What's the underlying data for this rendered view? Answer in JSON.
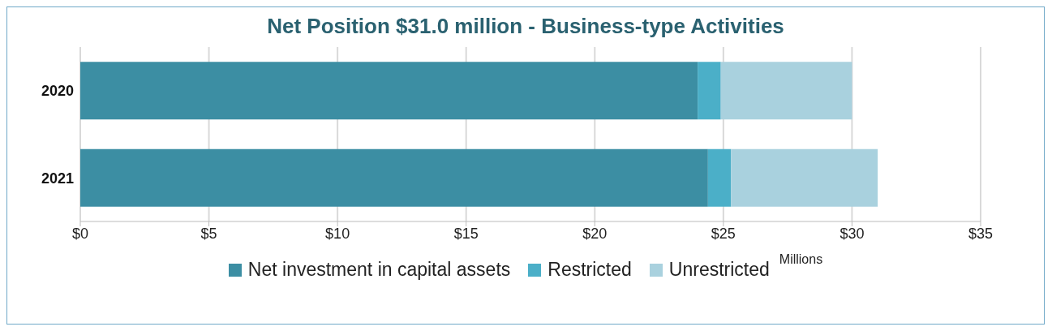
{
  "chart_data": {
    "type": "bar",
    "orientation": "horizontal",
    "stacked": true,
    "title": "Net Position $31.0 million - Business-type Activities",
    "xlabel": "Millions",
    "categories": [
      "2020",
      "2021"
    ],
    "series": [
      {
        "name": "Net investment in capital assets",
        "color": "#3c8ea3",
        "values": [
          24.0,
          24.4
        ]
      },
      {
        "name": "Restricted",
        "color": "#4bafc8",
        "values": [
          0.9,
          0.9
        ]
      },
      {
        "name": "Unrestricted",
        "color": "#a9d1de",
        "values": [
          5.1,
          5.7
        ]
      }
    ],
    "xlim": [
      0,
      35
    ],
    "xticks": [
      {
        "value": 0,
        "label": "$0"
      },
      {
        "value": 5,
        "label": "$5"
      },
      {
        "value": 10,
        "label": "$10"
      },
      {
        "value": 15,
        "label": "$15"
      },
      {
        "value": 20,
        "label": "$20"
      },
      {
        "value": 25,
        "label": "$25"
      },
      {
        "value": 30,
        "label": "$30"
      },
      {
        "value": 35,
        "label": "$35"
      }
    ],
    "grid": "x",
    "legend": "bottom"
  }
}
